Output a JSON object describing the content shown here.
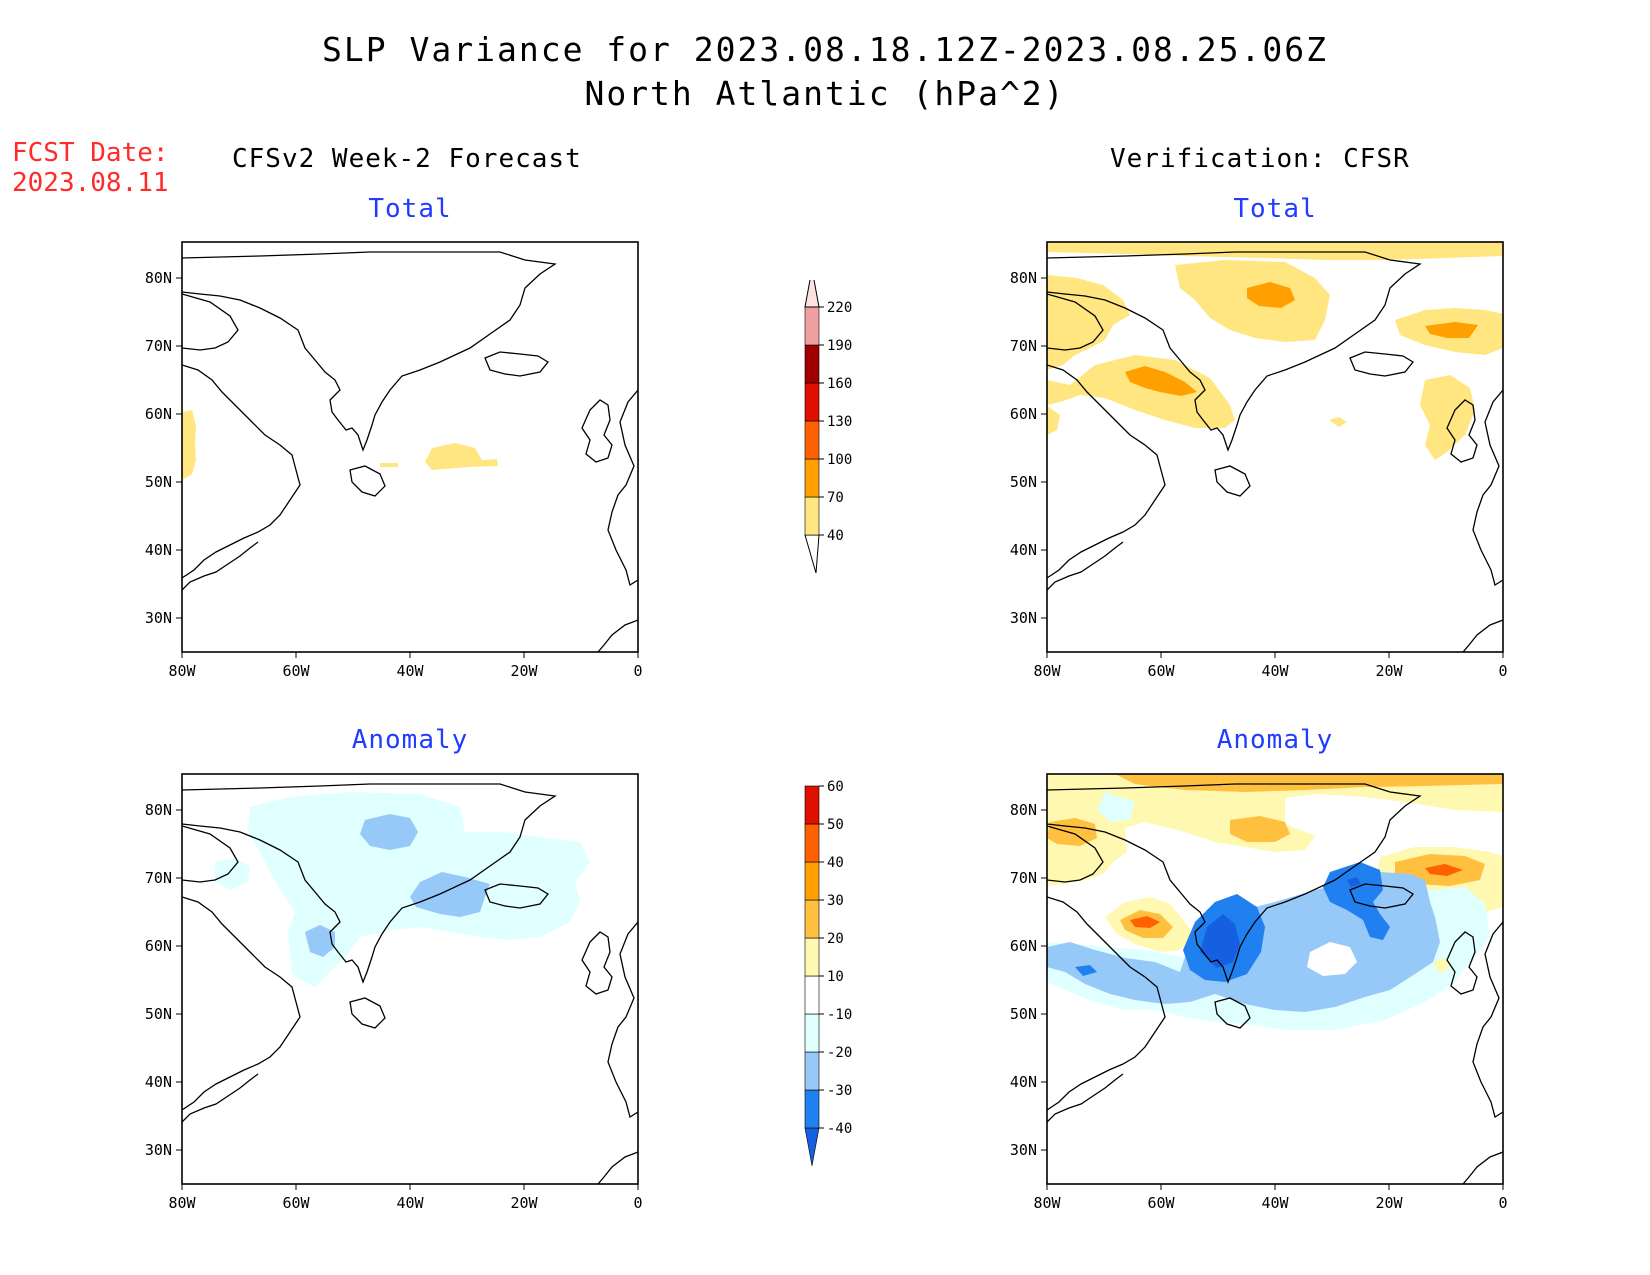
{
  "title": "SLP Variance for 2023.08.18.12Z-2023.08.25.06Z",
  "subtitle": "North Atlantic (hPa^2)",
  "fcst_date_label": "FCST Date:",
  "fcst_date_value": "2023.08.11",
  "left_column_title": "CFSv2 Week-2 Forecast",
  "right_column_title": "Verification: CFSR",
  "panels": {
    "total_label": "Total",
    "anomaly_label": "Anomaly"
  },
  "axes": {
    "lat_ticks": [
      "80N",
      "70N",
      "60N",
      "50N",
      "40N",
      "30N"
    ],
    "lon_ticks": [
      "80W",
      "60W",
      "40W",
      "20W",
      "0"
    ]
  },
  "colorbar_total": {
    "levels": [
      "40",
      "70",
      "100",
      "130",
      "160",
      "190",
      "220"
    ],
    "colors": [
      "#ffe680",
      "#ffa000",
      "#ff6000",
      "#e01000",
      "#a00000",
      "#f0a0a0",
      "#ffe0e0"
    ]
  },
  "colorbar_anom": {
    "levels": [
      "-40",
      "-30",
      "-20",
      "-10",
      "10",
      "20",
      "30",
      "40",
      "50",
      "60"
    ],
    "colors": [
      "#1560e0",
      "#2080f0",
      "#96c8f8",
      "#e0ffff",
      "#ffffff",
      "#fff8b0",
      "#ffc040",
      "#ffa000",
      "#ff6000",
      "#e01000",
      "#a00000"
    ]
  },
  "palette": {
    "yellow": "#ffe680",
    "orange": "#ffa000",
    "light_yellow": "#fff8b0",
    "light_orange": "#ffc040",
    "red_orange": "#ff6000",
    "pale_cyan": "#e0ffff",
    "light_blue": "#96c8f8",
    "mid_blue": "#2080f0",
    "dark_blue": "#1560e0"
  }
}
